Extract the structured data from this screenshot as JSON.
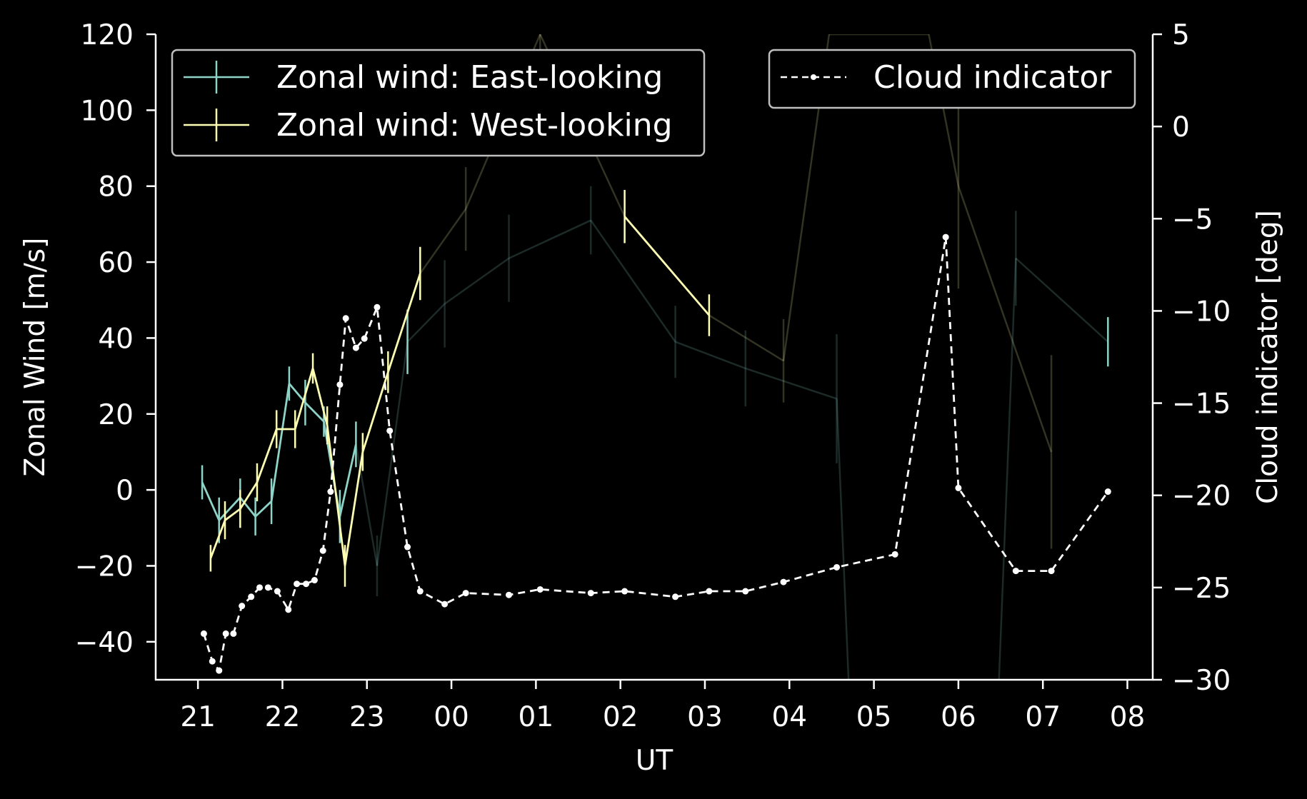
{
  "chart_data": {
    "type": "line",
    "xlabel": "UT",
    "ylabel": "Zonal Wind [m/s]",
    "y2label": "Cloud indicator [deg]",
    "xlim": [
      20.5,
      32.3
    ],
    "ylim": [
      -50,
      120
    ],
    "y2lim": [
      -30,
      5
    ],
    "x_ticks": [
      21,
      22,
      23,
      24,
      25,
      26,
      27,
      28,
      29,
      30,
      31,
      32
    ],
    "x_tick_labels": [
      "21",
      "22",
      "23",
      "00",
      "01",
      "02",
      "03",
      "04",
      "05",
      "06",
      "07",
      "08"
    ],
    "y_ticks": [
      -40,
      -20,
      0,
      20,
      40,
      60,
      80,
      100,
      120
    ],
    "y_tick_labels": [
      "−40",
      "−20",
      "0",
      "20",
      "40",
      "60",
      "80",
      "100",
      "120"
    ],
    "y2_ticks": [
      -30,
      -25,
      -20,
      -15,
      -10,
      -5,
      0,
      5
    ],
    "y2_tick_labels": [
      "−30",
      "−25",
      "−20",
      "−15",
      "−10",
      "−5",
      "0",
      "5"
    ],
    "legend_placement": [
      "upper-left",
      "upper-right"
    ],
    "grid": false,
    "colors": {
      "background": "#000000",
      "axes": "#ffffff",
      "east": "#8dd3c7",
      "west": "#feffb3",
      "cloud": "#ffffff",
      "legend_border": "#bfbfbf"
    },
    "series": [
      {
        "name": "Zonal wind: East-looking",
        "axis": "left",
        "color": "#8dd3c7",
        "points": [
          {
            "x": 21.05,
            "y": 2,
            "err": 4.5,
            "faded": false
          },
          {
            "x": 21.25,
            "y": -8,
            "err": 6,
            "faded": false
          },
          {
            "x": 21.5,
            "y": -2,
            "err": 5,
            "faded": false
          },
          {
            "x": 21.68,
            "y": -7,
            "err": 5,
            "faded": false
          },
          {
            "x": 21.87,
            "y": -3,
            "err": 6,
            "faded": false
          },
          {
            "x": 22.08,
            "y": 28,
            "err": 4.5,
            "faded": false
          },
          {
            "x": 22.27,
            "y": 23,
            "err": 6,
            "faded": false
          },
          {
            "x": 22.49,
            "y": 18,
            "err": 4,
            "faded": false
          },
          {
            "x": 22.68,
            "y": -7,
            "err": 7,
            "faded": false
          },
          {
            "x": 22.87,
            "y": 12,
            "err": 6,
            "faded": false
          },
          {
            "x": 23.12,
            "y": -20,
            "err": 8,
            "faded": true
          },
          {
            "x": 23.48,
            "y": 39,
            "err": 8.5,
            "faded": false
          },
          {
            "x": 23.92,
            "y": 49,
            "err": 11.5,
            "faded": true
          },
          {
            "x": 24.68,
            "y": 61,
            "err": 11.5,
            "faded": true
          },
          {
            "x": 25.65,
            "y": 71,
            "err": 9,
            "faded": true
          },
          {
            "x": 26.65,
            "y": 39,
            "err": 9.5,
            "faded": true
          },
          {
            "x": 27.48,
            "y": 32,
            "err": 10,
            "faded": true
          },
          {
            "x": 28.56,
            "y": 24,
            "err": 17,
            "faded": true
          },
          {
            "x": 28.7,
            "y": -50,
            "err": 0,
            "faded": true
          },
          {
            "x": 30.48,
            "y": -50,
            "err": 0,
            "faded": true
          },
          {
            "x": 30.68,
            "y": 61,
            "err": 12.5,
            "faded": true
          },
          {
            "x": 31.77,
            "y": 39,
            "err": 6.5,
            "faded": false
          }
        ]
      },
      {
        "name": "Zonal wind: West-looking",
        "axis": "left",
        "color": "#feffb3",
        "points": [
          {
            "x": 21.15,
            "y": -18,
            "err": 3.5,
            "faded": false
          },
          {
            "x": 21.32,
            "y": -8,
            "err": 5,
            "faded": false
          },
          {
            "x": 21.5,
            "y": -5,
            "err": 5,
            "faded": false
          },
          {
            "x": 21.7,
            "y": 2,
            "err": 5,
            "faded": false
          },
          {
            "x": 21.93,
            "y": 16,
            "err": 5,
            "faded": false
          },
          {
            "x": 22.15,
            "y": 16,
            "err": 5,
            "faded": false
          },
          {
            "x": 22.36,
            "y": 32,
            "err": 4,
            "faded": false
          },
          {
            "x": 22.53,
            "y": 17,
            "err": 5,
            "faded": false
          },
          {
            "x": 22.74,
            "y": -20,
            "err": 5.5,
            "faded": false
          },
          {
            "x": 22.95,
            "y": 10,
            "err": 5,
            "faded": false
          },
          {
            "x": 23.25,
            "y": 31,
            "err": 5.5,
            "faded": false
          },
          {
            "x": 23.63,
            "y": 57,
            "err": 7,
            "faded": false
          },
          {
            "x": 24.17,
            "y": 74,
            "err": 11,
            "faded": true
          },
          {
            "x": 25.05,
            "y": 120,
            "err": 5,
            "faded": true
          },
          {
            "x": 26.05,
            "y": 72,
            "err": 7,
            "faded": false
          },
          {
            "x": 27.05,
            "y": 46,
            "err": 5.5,
            "faded": false
          },
          {
            "x": 27.93,
            "y": 34,
            "err": 11,
            "faded": true
          },
          {
            "x": 28.47,
            "y": 120,
            "err": 0,
            "faded": true
          },
          {
            "x": 29.65,
            "y": 120,
            "err": 0,
            "faded": true
          },
          {
            "x": 30.0,
            "y": 80,
            "err": 27,
            "faded": true
          },
          {
            "x": 31.1,
            "y": 10,
            "err": 25.5,
            "faded": true
          }
        ]
      },
      {
        "name": "Cloud indicator",
        "axis": "right",
        "color": "#ffffff",
        "style": "dashed-markers",
        "points": [
          {
            "x": 21.07,
            "y": -27.5
          },
          {
            "x": 21.17,
            "y": -29
          },
          {
            "x": 21.25,
            "y": -29.5
          },
          {
            "x": 21.33,
            "y": -27.5
          },
          {
            "x": 21.42,
            "y": -27.5
          },
          {
            "x": 21.52,
            "y": -26
          },
          {
            "x": 21.63,
            "y": -25.5
          },
          {
            "x": 21.73,
            "y": -25
          },
          {
            "x": 21.83,
            "y": -25
          },
          {
            "x": 21.94,
            "y": -25.2
          },
          {
            "x": 22.07,
            "y": -26.2
          },
          {
            "x": 22.17,
            "y": -24.8
          },
          {
            "x": 22.28,
            "y": -24.8
          },
          {
            "x": 22.38,
            "y": -24.6
          },
          {
            "x": 22.48,
            "y": -23
          },
          {
            "x": 22.57,
            "y": -19.8
          },
          {
            "x": 22.68,
            "y": -14
          },
          {
            "x": 22.75,
            "y": -10.4
          },
          {
            "x": 22.87,
            "y": -12
          },
          {
            "x": 22.97,
            "y": -11.5
          },
          {
            "x": 23.12,
            "y": -9.8
          },
          {
            "x": 23.27,
            "y": -16.5
          },
          {
            "x": 23.48,
            "y": -22.8
          },
          {
            "x": 23.63,
            "y": -25.2
          },
          {
            "x": 23.92,
            "y": -25.9
          },
          {
            "x": 24.17,
            "y": -25.3
          },
          {
            "x": 24.68,
            "y": -25.4
          },
          {
            "x": 25.05,
            "y": -25.1
          },
          {
            "x": 25.65,
            "y": -25.3
          },
          {
            "x": 26.05,
            "y": -25.2
          },
          {
            "x": 26.65,
            "y": -25.5
          },
          {
            "x": 27.05,
            "y": -25.2
          },
          {
            "x": 27.48,
            "y": -25.2
          },
          {
            "x": 27.93,
            "y": -24.7
          },
          {
            "x": 28.56,
            "y": -23.9
          },
          {
            "x": 29.25,
            "y": -23.2
          },
          {
            "x": 29.85,
            "y": -6
          },
          {
            "x": 30.0,
            "y": -19.6
          },
          {
            "x": 30.68,
            "y": -24.1
          },
          {
            "x": 31.1,
            "y": -24.1
          },
          {
            "x": 31.77,
            "y": -19.8
          }
        ]
      }
    ]
  }
}
